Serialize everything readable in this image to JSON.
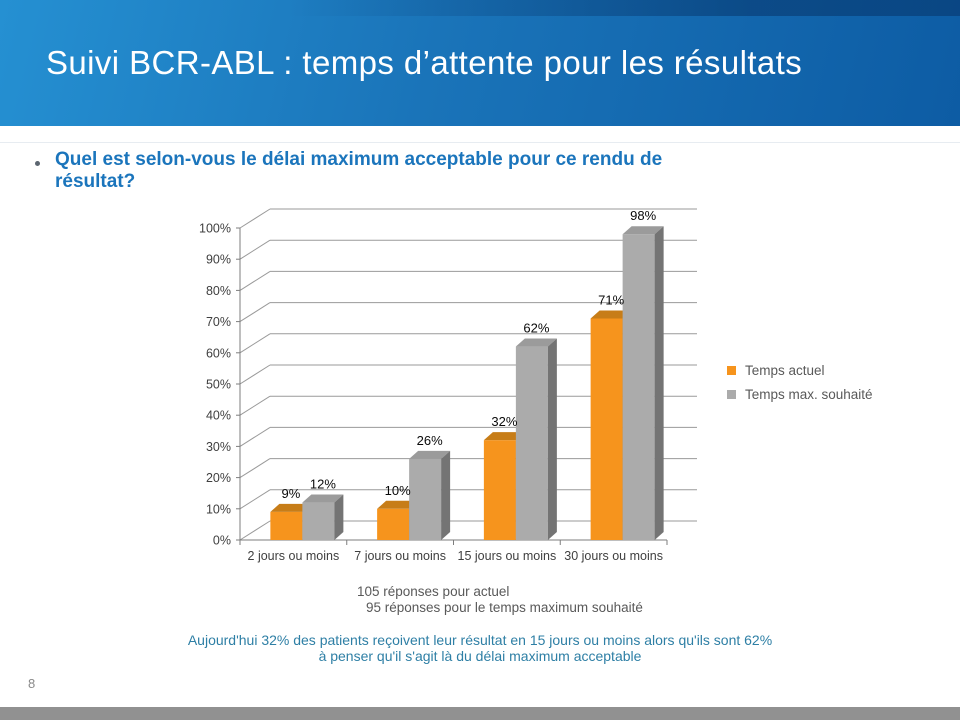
{
  "slide": {
    "title": "Suivi BCR-ABL : temps d’attente pour les résultats",
    "page_number": "8"
  },
  "question": {
    "lines": [
      "Quel est selon-vous le délai maximum acceptable pour ce rendu de",
      "résultat?"
    ]
  },
  "chart_data": {
    "type": "bar",
    "style": "3d-clustered-column",
    "title": "",
    "xlabel": "",
    "ylabel": "",
    "categories": [
      "2 jours ou moins",
      "7 jours ou moins",
      "15 jours ou moins",
      "30 jours ou moins"
    ],
    "series": [
      {
        "name": "Temps actuel",
        "values": [
          9,
          10,
          32,
          71
        ],
        "color": "#f6941d",
        "color_top": "#c77d18",
        "color_side": "#9a5d10"
      },
      {
        "name": "Temps max. souhaité",
        "values": [
          12,
          26,
          62,
          98
        ],
        "color": "#ababab",
        "color_top": "#9b9b9b",
        "color_side": "#747474"
      }
    ],
    "value_label_suffix": "%",
    "ylim": [
      0,
      100
    ],
    "ytick_step": 10,
    "ytick_labels": [
      "0%",
      "10%",
      "20%",
      "30%",
      "40%",
      "50%",
      "60%",
      "70%",
      "80%",
      "90%",
      "100%"
    ],
    "grid": true,
    "legend_position": "right"
  },
  "captions": {
    "line1": "105 réponses pour actuel",
    "line2": "95 réponses pour le temps maximum souhaité"
  },
  "conclusion": {
    "lines": [
      "Aujourd'hui 32% des patients reçoivent leur résultat en 15 jours ou moins alors qu'ils sont 62%",
      "à penser qu'il s'agit là du délai maximum acceptable"
    ]
  },
  "colors": {
    "header_gradient_start": "#2590d2",
    "header_gradient_end": "#0d5ca4",
    "question_text": "#1b75bc",
    "conclusion_text": "#2e7fa5",
    "caption_text": "#595959",
    "grid_line": "#9a9a9a",
    "axis_line": "#7d7d7d",
    "bottom_bar": "#919191"
  }
}
